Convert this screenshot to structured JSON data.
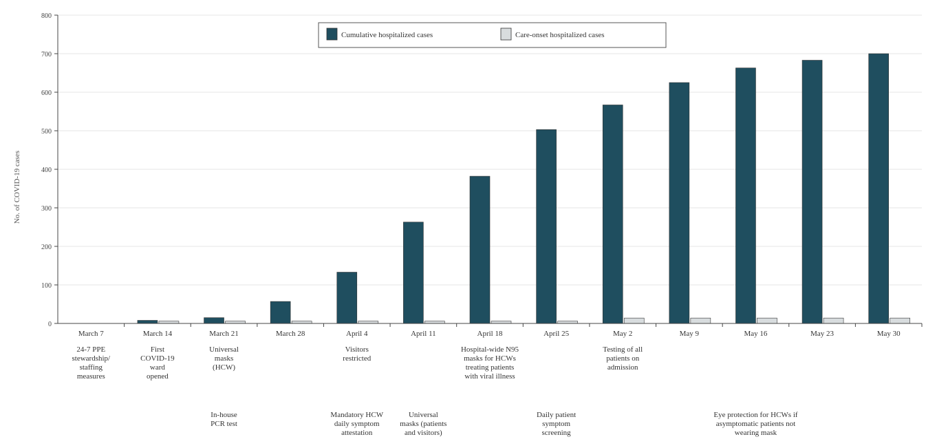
{
  "chart_data": {
    "type": "bar",
    "title": "",
    "xlabel": "",
    "ylabel": "No. of COVID-19 cases",
    "ylim": [
      0,
      800
    ],
    "yticks": [
      0,
      100,
      200,
      300,
      400,
      500,
      600,
      700,
      800
    ],
    "grid": true,
    "legend_position": "top-center",
    "categories": [
      "March 7",
      "March 14",
      "March 21",
      "March 28",
      "April 4",
      "April 11",
      "April 18",
      "April 25",
      "May 2",
      "May 9",
      "May 16",
      "May 23",
      "May 30"
    ],
    "series": [
      {
        "name": "Cumulative hospitalized cases",
        "color": "#1f4e5f",
        "values": [
          0,
          8,
          15,
          57,
          133,
          263,
          382,
          503,
          567,
          625,
          663,
          683,
          700
        ]
      },
      {
        "name": "Care-onset hospitalized cases",
        "color": "#d8dcde",
        "values": [
          0,
          6,
          6,
          6,
          6,
          6,
          6,
          6,
          14,
          14,
          14,
          14,
          14
        ]
      }
    ],
    "annotations_upper": [
      {
        "category": "March 7",
        "text": "24-7 PPE\nstewardship/\nstaffing\nmeasures"
      },
      {
        "category": "March 14",
        "text": "First\nCOVID-19\nward\nopened"
      },
      {
        "category": "March 21",
        "text": "Universal\nmasks\n(HCW)"
      },
      {
        "category": "April 4",
        "text": "Visitors\nrestricted"
      },
      {
        "category": "April 18",
        "text": "Hospital-wide N95\nmasks for HCWs\ntreating patients\nwith viral illness"
      },
      {
        "category": "May 2",
        "text": "Testing of all\npatients on\nadmission"
      }
    ],
    "annotations_lower": [
      {
        "category": "March 21",
        "text": "In-house\nPCR test"
      },
      {
        "category": "April 4",
        "text": "Mandatory HCW\ndaily symptom\nattestation"
      },
      {
        "category": "April 11",
        "text": "Universal\nmasks (patients\nand visitors)"
      },
      {
        "category": "April 25",
        "text": "Daily patient\nsymptom\nscreening"
      },
      {
        "category": "May 16",
        "text": "Eye protection for HCWs if\nasymptomatic patients not\nwearing mask"
      }
    ]
  }
}
